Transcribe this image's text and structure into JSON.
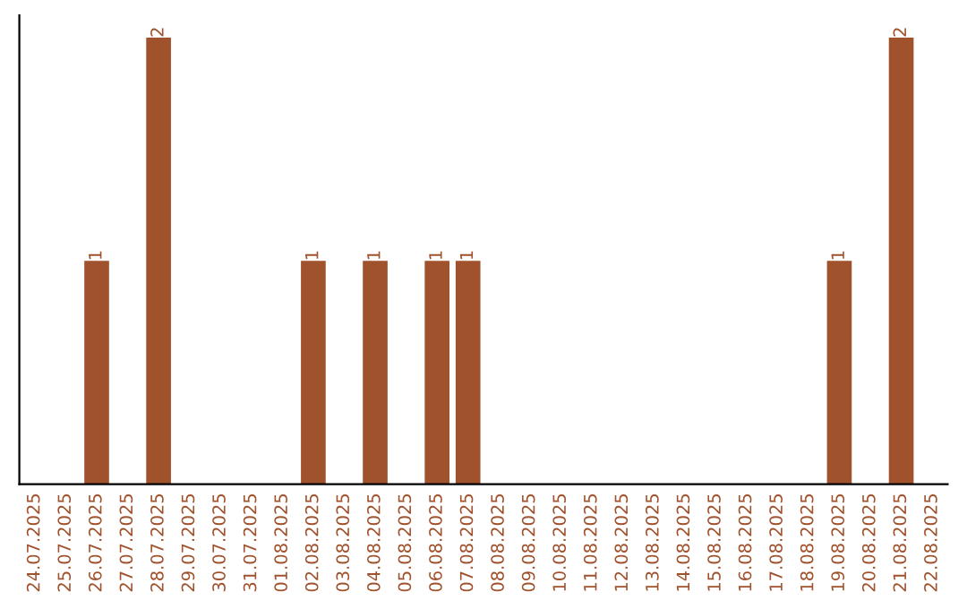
{
  "chart_data": {
    "type": "bar",
    "categories": [
      "24.07.2025",
      "25.07.2025",
      "26.07.2025",
      "27.07.2025",
      "28.07.2025",
      "29.07.2025",
      "30.07.2025",
      "31.07.2025",
      "01.08.2025",
      "02.08.2025",
      "03.08.2025",
      "04.08.2025",
      "05.08.2025",
      "06.08.2025",
      "07.08.2025",
      "08.08.2025",
      "09.08.2025",
      "10.08.2025",
      "11.08.2025",
      "12.08.2025",
      "13.08.2025",
      "14.08.2025",
      "15.08.2025",
      "16.08.2025",
      "17.08.2025",
      "18.08.2025",
      "19.08.2025",
      "20.08.2025",
      "21.08.2025",
      "22.08.2025"
    ],
    "values": [
      0,
      0,
      1,
      0,
      2,
      0,
      0,
      0,
      0,
      1,
      0,
      1,
      0,
      1,
      1,
      0,
      0,
      0,
      0,
      0,
      0,
      0,
      0,
      0,
      0,
      0,
      1,
      0,
      2,
      0
    ],
    "value_labels": [
      null,
      null,
      "1",
      null,
      "2",
      null,
      null,
      null,
      null,
      "1",
      null,
      "1",
      null,
      "1",
      "1",
      null,
      null,
      null,
      null,
      null,
      null,
      null,
      null,
      null,
      null,
      null,
      "1",
      null,
      "2",
      null
    ],
    "color": "#a0522d",
    "ylim": [
      0,
      2.1
    ],
    "tick_labels": "x",
    "grid": false,
    "legend": false
  }
}
